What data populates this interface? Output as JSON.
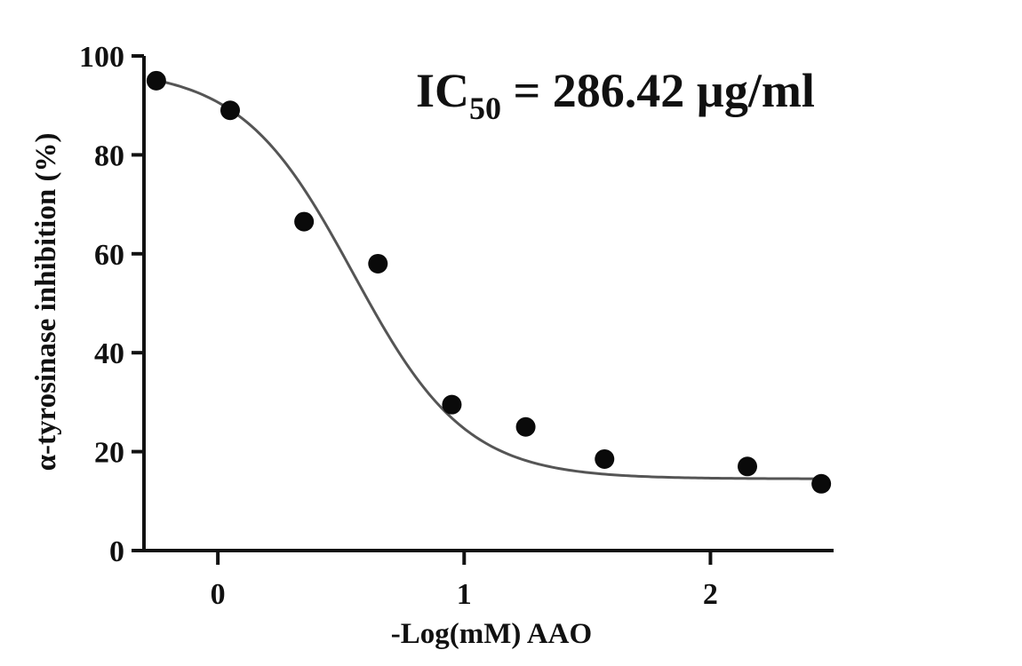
{
  "chart_data": {
    "type": "scatter",
    "title": "",
    "xlabel": "-Log(mM) AAO",
    "ylabel": "α-tyrosinase inhibition (%)",
    "xlim": [
      -0.3,
      2.5
    ],
    "ylim": [
      0,
      100
    ],
    "x_ticks": [
      0,
      1,
      2
    ],
    "y_ticks": [
      0,
      20,
      40,
      60,
      80,
      100
    ],
    "grid": false,
    "legend": "none",
    "annotation": {
      "main": "IC",
      "subscript": "50",
      "value": " = 286.42 µg/ml"
    },
    "points": {
      "x": [
        -0.25,
        0.05,
        0.35,
        0.65,
        0.95,
        1.25,
        1.57,
        2.15,
        2.45
      ],
      "y": [
        95,
        89,
        66.5,
        58,
        29.5,
        25,
        18.5,
        17,
        13.5
      ]
    },
    "fit": {
      "model": "sigmoidal dose-response",
      "bottom": 14.5,
      "top": 97.5,
      "x50": 0.55,
      "hill_slope": 1.9
    },
    "colors": {
      "points": "#0a0a0a",
      "curve": "#555555",
      "axes": "#111111"
    }
  }
}
